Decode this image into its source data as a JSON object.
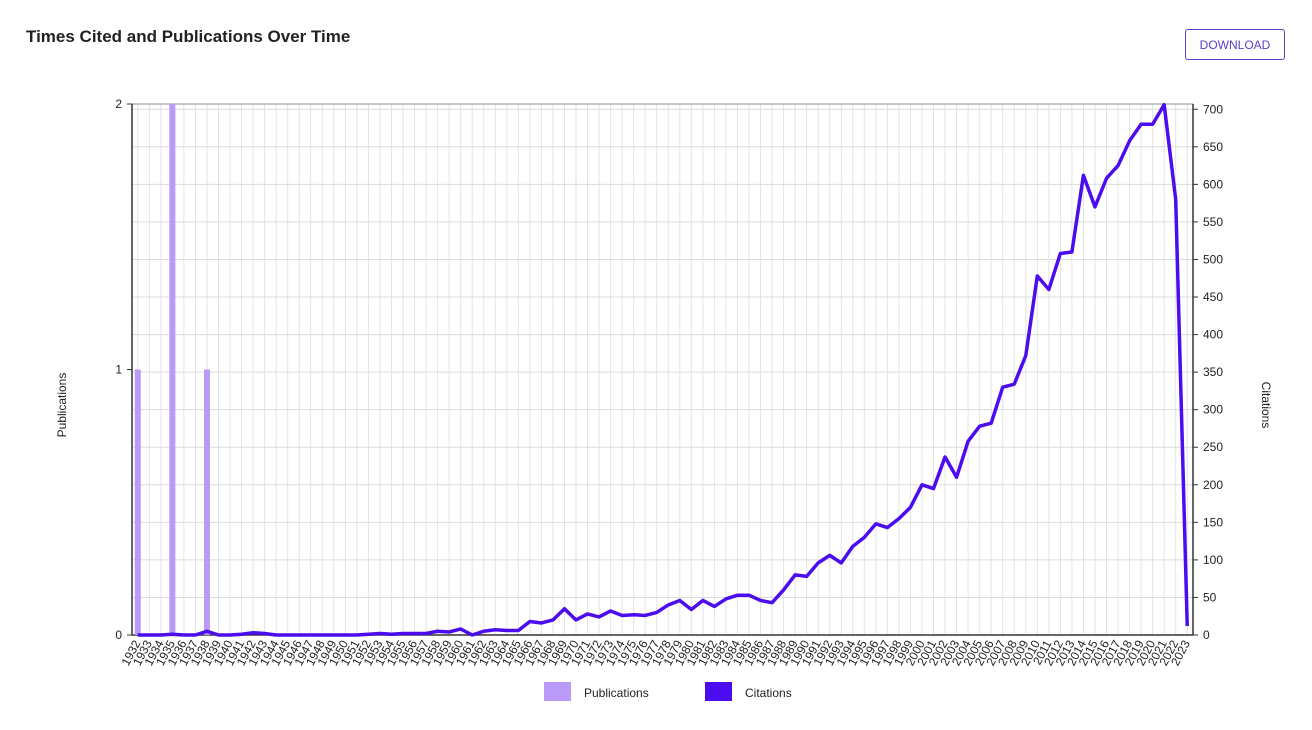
{
  "header": {
    "title": "Times Cited and Publications Over Time",
    "button": "DOWNLOAD"
  },
  "chart_data": {
    "type": "bar-line",
    "y_label": "Publications",
    "y2_label": "Citations",
    "categories": [
      "1932",
      "1933",
      "1934",
      "1935",
      "1936",
      "1937",
      "1938",
      "1939",
      "1940",
      "1941",
      "1942",
      "1943",
      "1944",
      "1945",
      "1946",
      "1947",
      "1948",
      "1949",
      "1950",
      "1951",
      "1952",
      "1953",
      "1954",
      "1955",
      "1956",
      "1957",
      "1958",
      "1959",
      "1960",
      "1961",
      "1962",
      "1963",
      "1964",
      "1965",
      "1966",
      "1967",
      "1968",
      "1969",
      "1970",
      "1971",
      "1972",
      "1973",
      "1974",
      "1975",
      "1976",
      "1977",
      "1978",
      "1979",
      "1980",
      "1981",
      "1982",
      "1983",
      "1984",
      "1985",
      "1986",
      "1987",
      "1988",
      "1989",
      "1990",
      "1991",
      "1992",
      "1993",
      "1994",
      "1995",
      "1996",
      "1997",
      "1998",
      "1999",
      "2000",
      "2001",
      "2002",
      "2003",
      "2004",
      "2005",
      "2006",
      "2007",
      "2008",
      "2009",
      "2010",
      "2011",
      "2012",
      "2013",
      "2014",
      "2015",
      "2016",
      "2017",
      "2018",
      "2019",
      "2020",
      "2021",
      "2022",
      "2023"
    ],
    "series": [
      {
        "name": "Publications",
        "color": "#b99af8",
        "values": [
          1,
          0,
          0,
          2,
          0,
          0,
          1,
          0,
          0,
          0,
          0,
          0,
          0,
          0,
          0,
          0,
          0,
          0,
          0,
          0,
          0,
          0,
          0,
          0,
          0,
          0,
          0,
          0,
          0,
          0,
          0,
          0,
          0,
          0,
          0,
          0,
          0,
          0,
          0,
          0,
          0,
          0,
          0,
          0,
          0,
          0,
          0,
          0,
          0,
          0,
          0,
          0,
          0,
          0,
          0,
          0,
          0,
          0,
          0,
          0,
          0,
          0,
          0,
          0,
          0,
          0,
          0,
          0,
          0,
          0,
          0,
          0,
          0,
          0,
          0,
          0,
          0,
          0,
          0,
          0,
          0,
          0,
          0,
          0,
          0,
          0,
          0,
          0,
          0,
          0,
          0,
          0
        ]
      },
      {
        "name": "Citations",
        "color": "#4b0cf0",
        "axis": "y2",
        "values": [
          0,
          0,
          0,
          1,
          0,
          0,
          5,
          0,
          0,
          1,
          3,
          2,
          0,
          0,
          0,
          0,
          0,
          0,
          0,
          0,
          1,
          2,
          1,
          2,
          2,
          2,
          5,
          4,
          8,
          0,
          5,
          7,
          6,
          6,
          18,
          16,
          20,
          35,
          20,
          28,
          24,
          32,
          26,
          27,
          26,
          30,
          40,
          46,
          34,
          46,
          38,
          48,
          53,
          53,
          46,
          43,
          60,
          80,
          78,
          96,
          106,
          96,
          118,
          130,
          148,
          143,
          155,
          170,
          200,
          195,
          237,
          210,
          258,
          278,
          282,
          330,
          334,
          372,
          478,
          460,
          508,
          510,
          612,
          570,
          608,
          625,
          658,
          680,
          680,
          706,
          580,
          12
        ]
      }
    ],
    "ylim": [
      0,
      2
    ],
    "yticks": [
      0,
      1,
      2
    ],
    "y2lim": [
      0,
      707
    ],
    "y2ticks": [
      0,
      50,
      100,
      150,
      200,
      250,
      300,
      350,
      400,
      450,
      500,
      550,
      600,
      650,
      700
    ],
    "grid": true,
    "legend": "bottom"
  }
}
